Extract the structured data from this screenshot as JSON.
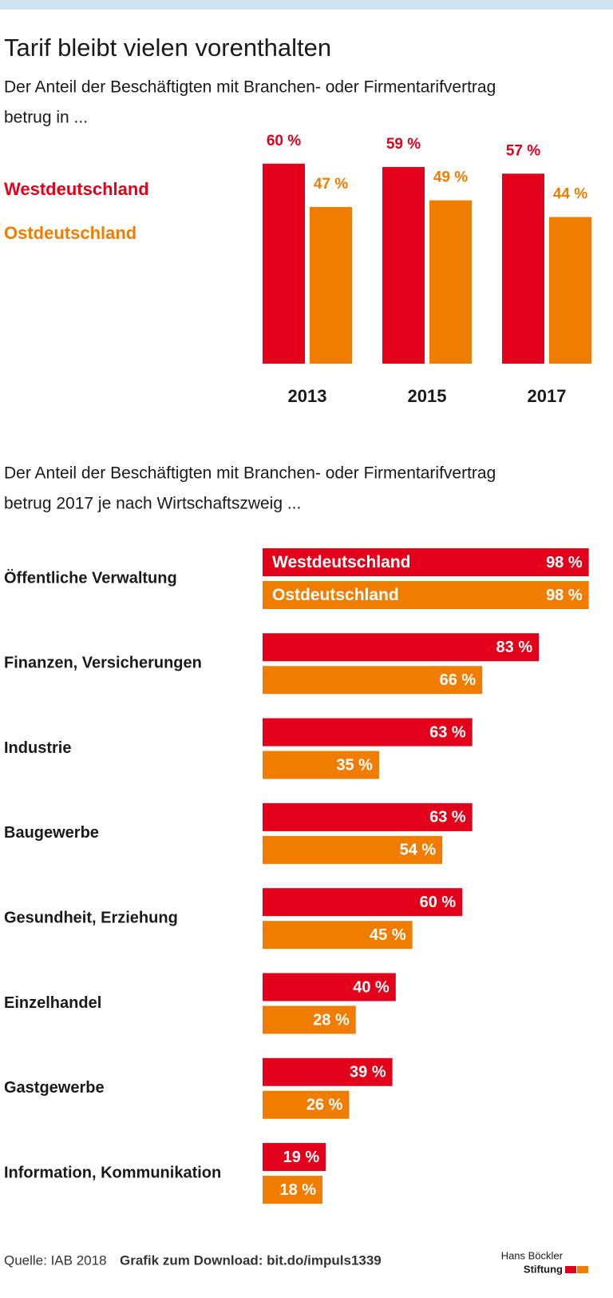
{
  "chart_data": [
    {
      "type": "bar",
      "title": "Tarif bleibt vielen vorenthalten",
      "subtitle_lines": [
        "Der Anteil der Beschäftigten mit Branchen- oder Firmentarifvertrag",
        "betrug in ..."
      ],
      "categories": [
        "2013",
        "2015",
        "2017"
      ],
      "series": [
        {
          "name": "Westdeutschland",
          "color": "#e2001a",
          "values": [
            60,
            59,
            57
          ],
          "value_labels": [
            "60 %",
            "59 %",
            "57 %"
          ]
        },
        {
          "name": "Ostdeutschland",
          "color": "#f07d00",
          "values": [
            47,
            49,
            44
          ],
          "value_labels": [
            "47 %",
            "49 %",
            "44 %"
          ]
        }
      ]
    },
    {
      "type": "barh",
      "subtitle_lines": [
        "Der Anteil der Beschäftigten mit Branchen- oder Firmentarifvertrag",
        "betrug 2017 je nach Wirtschaftszweig  ..."
      ],
      "categories": [
        "Öffentliche Verwaltung",
        "Finanzen, Versicherungen",
        "Industrie",
        "Baugewerbe",
        "Gesundheit, Erziehung",
        "Einzelhandel",
        "Gastgewerbe",
        "Information, Kommunikation"
      ],
      "series": [
        {
          "name": "Westdeutschland",
          "color": "#e2001a",
          "values": [
            98,
            83,
            63,
            63,
            60,
            40,
            39,
            19
          ],
          "value_labels": [
            "98 %",
            "83 %",
            "63 %",
            "63 %",
            "60 %",
            "40 %",
            "39 %",
            "19 %"
          ]
        },
        {
          "name": "Ostdeutschland",
          "color": "#f07d00",
          "values": [
            98,
            66,
            35,
            54,
            45,
            28,
            26,
            18
          ],
          "value_labels": [
            "98 %",
            "66 %",
            "35 %",
            "54 %",
            "45 %",
            "28 %",
            "26 %",
            "18 %"
          ]
        }
      ]
    }
  ],
  "footer": {
    "source": "Quelle: IAB 2018",
    "download": "Grafik zum Download: bit.do/impuls1339",
    "logo_line1": "Hans Böckler",
    "logo_line2": "Stiftung"
  }
}
